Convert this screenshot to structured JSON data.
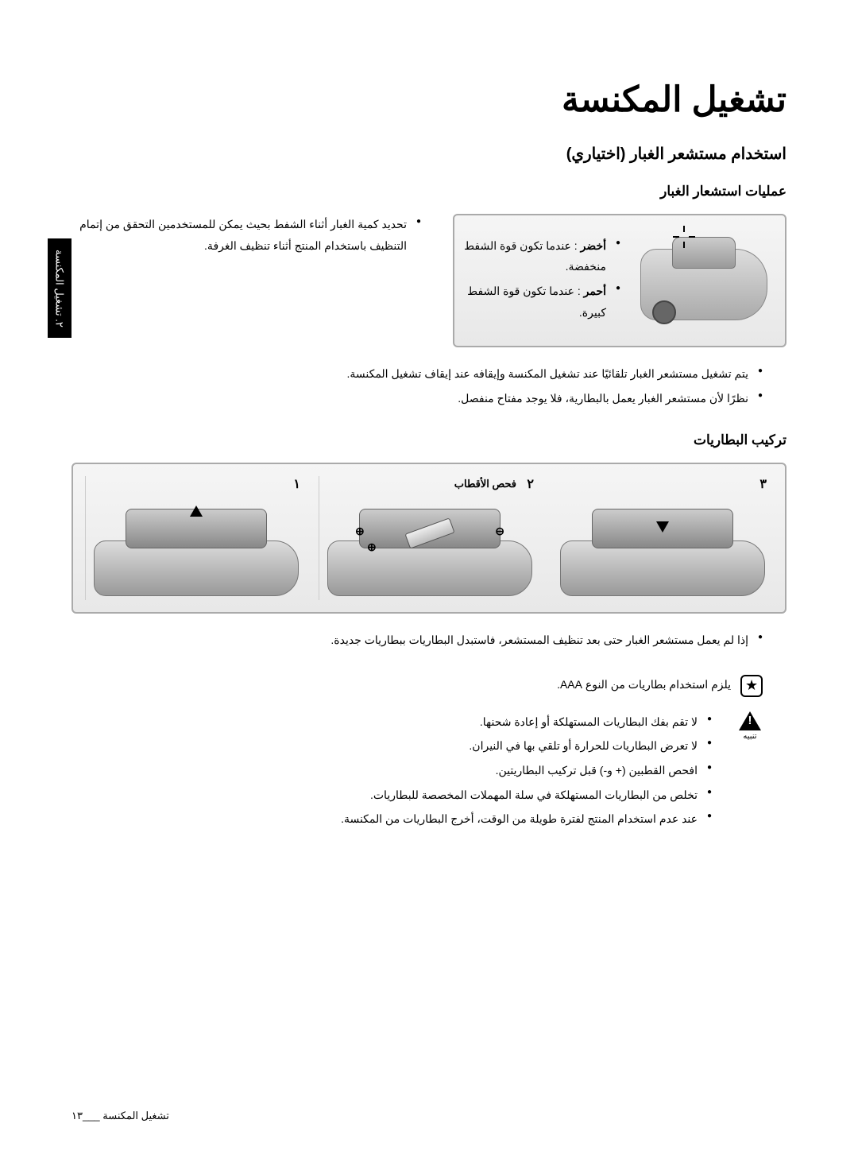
{
  "mainTitle": "تشغيل المكنسة",
  "sectionTitle": "استخدام مستشعر الغبار (اختياري)",
  "sub1": "عمليات استشعار الغبار",
  "intro1": "تحديد كمية الغبار أثناء الشفط بحيث يمكن للمستخدمين التحقق من إتمام التنظيف باستخدام المنتج أثناء تنظيف الغرفة.",
  "greenLabel": "أخضر",
  "greenText": ": عندما تكون قوة الشفط منخفضة.",
  "redLabel": "أحمر",
  "redText": ": عندما تكون قوة الشفط كبيرة.",
  "b1": "يتم تشغيل مستشعر الغبار تلقائيًا عند تشغيل المكنسة وإيقافه عند إيقاف تشغيل المكنسة.",
  "b2": "نظرًا لأن مستشعر الغبار يعمل بالبطارية، فلا يوجد مفتاح منفصل.",
  "sub2": "تركيب البطاريات",
  "step1": "١",
  "step2": "٢",
  "step2Label": "فحص الأقطاب",
  "step3": "٣",
  "b3": "إذا لم يعمل مستشعر الغبار حتى بعد تنظيف المستشعر، فاستبدل البطاريات ببطاريات جديدة.",
  "noteText": "يلزم استخدام بطاريات من النوع AAA.",
  "warnLabel": "تنبيه",
  "w1": "لا تقم بفك البطاريات المستهلكة أو إعادة شحنها.",
  "w2": "لا تعرض البطاريات للحرارة أو تلقي بها في النيران.",
  "w3": "افحص القطبين (+ و-) قبل تركيب البطاريتين.",
  "w4": "تخلص من البطاريات المستهلكة في سلة المهملات المخصصة للبطاريات.",
  "w5": "عند عدم استخدام المنتج لفترة طويلة من الوقت، أخرج البطاريات من المكنسة.",
  "sidebarText": "٢. تشغيل المكنسة",
  "footerText": "تشغيل المكنسة ___١٣",
  "plus": "⊕",
  "minus": "⊖",
  "star": "★"
}
